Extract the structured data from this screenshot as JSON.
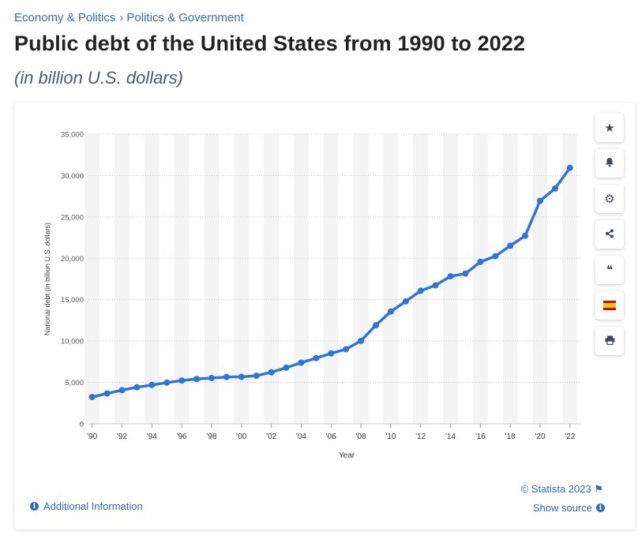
{
  "breadcrumb": {
    "items": [
      "Economy & Politics",
      "Politics & Government"
    ],
    "separator": "›"
  },
  "header": {
    "title": "Public debt of the United States from 1990 to 2022",
    "subtitle": "(in billion U.S. dollars)"
  },
  "toolbar": {
    "buttons": [
      {
        "name": "star-icon",
        "glyph": "★"
      },
      {
        "name": "bell-icon",
        "glyph": "🔔"
      },
      {
        "name": "gear-icon",
        "glyph": "⚙"
      },
      {
        "name": "share-icon",
        "glyph": "⋖"
      },
      {
        "name": "quote-icon",
        "glyph": "❝"
      },
      {
        "name": "flag-es-icon",
        "glyph": ""
      },
      {
        "name": "print-icon",
        "glyph": "⎙"
      }
    ]
  },
  "footer": {
    "credit": "© Statista 2023",
    "show_source": "Show source",
    "additional_info": "Additional Information"
  },
  "colors": {
    "line": "#2e75d6",
    "band": "#f4f4f4",
    "grid": "#c8c8c8",
    "link": "#2a6ebb"
  },
  "chart_data": {
    "type": "line",
    "title": "",
    "xlabel": "Year",
    "ylabel": "National debt (in billion U.S. dollars)",
    "ylim": [
      0,
      35000
    ],
    "yticks": [
      0,
      5000,
      10000,
      15000,
      20000,
      25000,
      30000,
      35000
    ],
    "ytick_labels": [
      "0",
      "5,000",
      "10,000",
      "15,000",
      "20,000",
      "25,000",
      "30,000",
      "35,000"
    ],
    "xticks": [
      1990,
      1992,
      1994,
      1996,
      1998,
      2000,
      2002,
      2004,
      2006,
      2008,
      2010,
      2012,
      2014,
      2016,
      2018,
      2020,
      2022
    ],
    "xtick_labels": [
      "'90",
      "'92",
      "'94",
      "'96",
      "'98",
      "'00",
      "'02",
      "'04",
      "'06",
      "'08",
      "'10",
      "'12",
      "'14",
      "'16",
      "'18",
      "'20",
      "'22"
    ],
    "grid": true,
    "x": [
      1990,
      1991,
      1992,
      1993,
      1994,
      1995,
      1996,
      1997,
      1998,
      1999,
      2000,
      2001,
      2002,
      2003,
      2004,
      2005,
      2006,
      2007,
      2008,
      2009,
      2010,
      2011,
      2012,
      2013,
      2014,
      2015,
      2016,
      2017,
      2018,
      2019,
      2020,
      2021,
      2022
    ],
    "series": [
      {
        "values": [
          3233,
          3665,
          4065,
          4411,
          4693,
          4974,
          5225,
          5413,
          5526,
          5656,
          5674,
          5807,
          6228,
          6783,
          7379,
          7933,
          8507,
          9008,
          10025,
          11910,
          13562,
          14790,
          16066,
          16738,
          17824,
          18151,
          19573,
          20245,
          21516,
          22719,
          26945,
          28428,
          30929
        ]
      }
    ]
  }
}
